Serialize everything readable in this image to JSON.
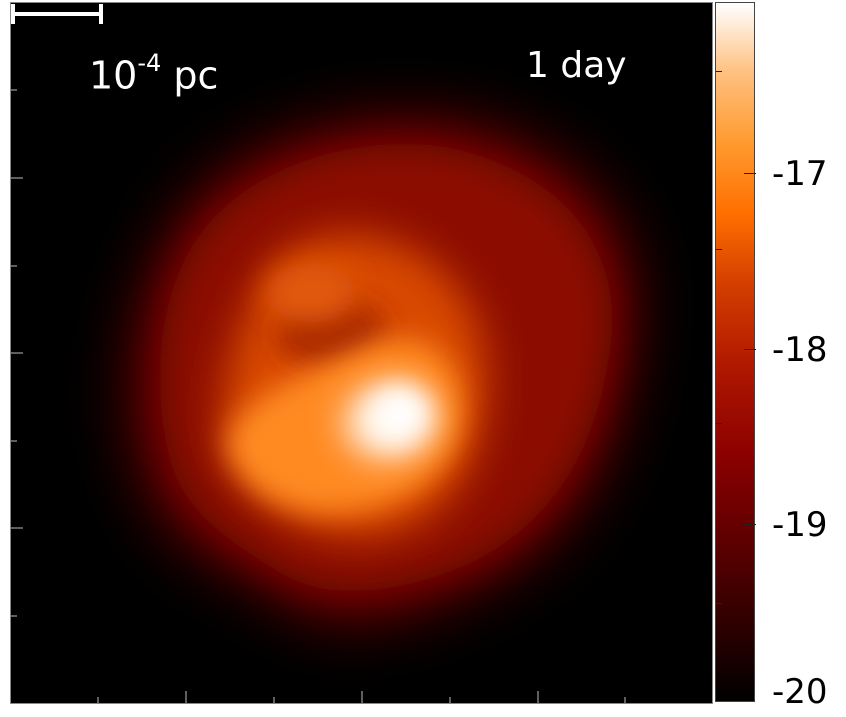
{
  "panel": {
    "time_label": "1 day",
    "scale_bar_base": "10",
    "scale_bar_exp": "-4",
    "scale_bar_unit": "pc"
  },
  "colorbar": {
    "labels": [
      "-17",
      "-18",
      "-19",
      "-20"
    ],
    "colormap": [
      "#000000",
      "#5a0000",
      "#b01800",
      "#ff7000",
      "#ffc080",
      "#ffffff"
    ]
  }
}
